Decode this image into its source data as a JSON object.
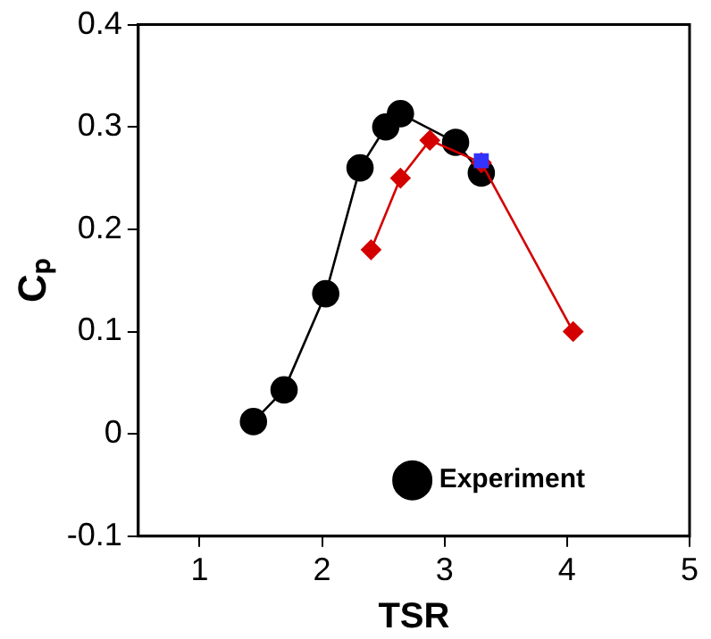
{
  "chart_data": {
    "type": "line",
    "xlabel": "TSR",
    "ylabel": "Cₚ",
    "xlim": [
      0.5,
      5
    ],
    "xticks": [
      1,
      2,
      3,
      4,
      5
    ],
    "ylim": [
      -0.1,
      0.4
    ],
    "yticks": [
      -0.1,
      0,
      0.1,
      0.2,
      0.3,
      0.4
    ],
    "grid": false,
    "legend": "bottom",
    "series": [
      {
        "color": "#d40000",
        "marker": "diamond",
        "x": [
          2.4,
          2.64,
          2.88,
          3.3,
          4.05
        ],
        "values": [
          0.18,
          0.25,
          0.287,
          0.265,
          0.1
        ]
      },
      {
        "color": "#3333ff",
        "marker": "square",
        "x": [
          3.3
        ],
        "values": [
          0.267
        ]
      },
      {
        "name": "Experiment",
        "color": "#000000",
        "marker": "circle",
        "x": [
          1.44,
          1.69,
          2.03,
          2.31,
          2.52,
          2.64,
          3.09,
          3.3
        ],
        "values": [
          0.012,
          0.043,
          0.137,
          0.26,
          0.3,
          0.313,
          0.285,
          0.255
        ]
      }
    ]
  }
}
